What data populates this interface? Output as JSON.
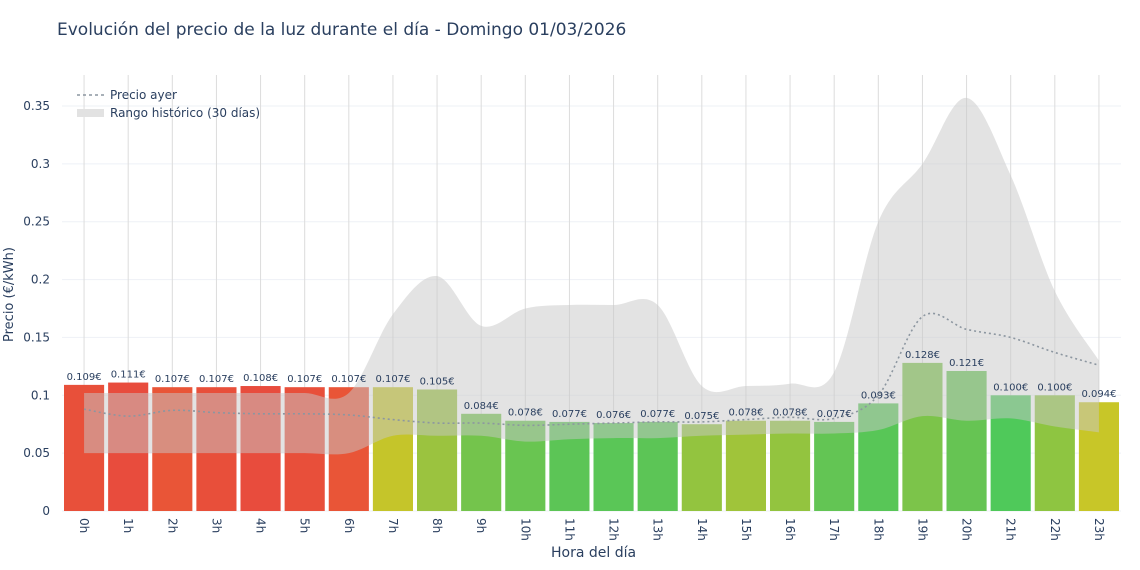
{
  "chart_data": {
    "type": "bar",
    "title": "Evolución del precio de la luz durante el día - Domingo 01/03/2026",
    "xlabel": "Hora del día",
    "ylabel": "Precio (€/kWh)",
    "ylim": [
      0,
      0.37
    ],
    "yticks": [
      "0",
      "0.05",
      "0.1",
      "0.15",
      "0.2",
      "0.25",
      "0.3",
      "0.35"
    ],
    "ytick_values": [
      0,
      0.05,
      0.1,
      0.15,
      0.2,
      0.25,
      0.3,
      0.35
    ],
    "grid": true,
    "legend_position": "top-left",
    "categories": [
      "0h",
      "1h",
      "2h",
      "3h",
      "4h",
      "5h",
      "6h",
      "7h",
      "8h",
      "9h",
      "10h",
      "11h",
      "12h",
      "13h",
      "14h",
      "15h",
      "16h",
      "17h",
      "18h",
      "19h",
      "20h",
      "21h",
      "22h",
      "23h"
    ],
    "values": [
      0.109,
      0.111,
      0.107,
      0.107,
      0.108,
      0.107,
      0.107,
      0.107,
      0.105,
      0.084,
      0.078,
      0.077,
      0.076,
      0.077,
      0.075,
      0.078,
      0.078,
      0.077,
      0.093,
      0.128,
      0.121,
      0.1,
      0.1,
      0.094
    ],
    "labels": [
      "0.109€",
      "0.111€",
      "0.107€",
      "0.107€",
      "0.108€",
      "0.107€",
      "0.107€",
      "0.107€",
      "0.105€",
      "0.084€",
      "0.078€",
      "0.077€",
      "0.076€",
      "0.077€",
      "0.075€",
      "0.078€",
      "0.078€",
      "0.077€",
      "0.093€",
      "0.128€",
      "0.121€",
      "0.100€",
      "0.100€",
      "0.094€"
    ],
    "bar_colors": [
      "#e8503a",
      "#e84c3d",
      "#e95537",
      "#e84f3a",
      "#e84c3d",
      "#e84f3a",
      "#e95537",
      "#c5c52a",
      "#9bc33f",
      "#74c44c",
      "#69c551",
      "#5cc556",
      "#5ac657",
      "#5cc556",
      "#93c43f",
      "#a0c43a",
      "#93c43f",
      "#63c554",
      "#58c657",
      "#7cc44a",
      "#66c453",
      "#4fc95a",
      "#8ec541",
      "#c8c628"
    ],
    "series": [
      {
        "name": "Precio ayer",
        "type": "line",
        "style": "dotted",
        "color": "#8c96a0",
        "values": [
          0.088,
          0.082,
          0.087,
          0.085,
          0.084,
          0.084,
          0.083,
          0.079,
          0.076,
          0.076,
          0.074,
          0.075,
          0.076,
          0.077,
          0.077,
          0.079,
          0.081,
          0.08,
          0.1,
          0.168,
          0.157,
          0.15,
          0.137,
          0.126
        ]
      },
      {
        "name": "Rango histórico (30 días)",
        "type": "band",
        "color": "#d3d3d3",
        "upper": [
          0.102,
          0.102,
          0.102,
          0.102,
          0.102,
          0.102,
          0.102,
          0.17,
          0.203,
          0.16,
          0.175,
          0.178,
          0.178,
          0.178,
          0.108,
          0.108,
          0.11,
          0.12,
          0.25,
          0.3,
          0.357,
          0.29,
          0.19,
          0.13
        ],
        "lower": [
          0.05,
          0.05,
          0.05,
          0.05,
          0.05,
          0.05,
          0.05,
          0.065,
          0.065,
          0.065,
          0.06,
          0.062,
          0.063,
          0.063,
          0.065,
          0.066,
          0.067,
          0.067,
          0.07,
          0.082,
          0.078,
          0.08,
          0.073,
          0.068
        ]
      }
    ]
  }
}
